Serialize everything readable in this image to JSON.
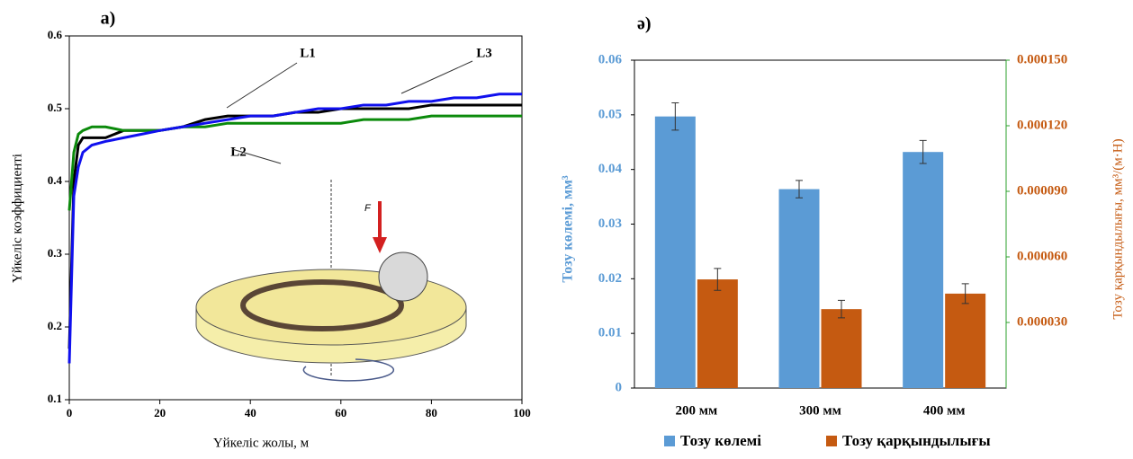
{
  "chart_data": [
    {
      "type": "line",
      "x_label": "Үйкеліс жолы, м",
      "y_label": "Үйкеліс коэффициенті",
      "annotations": [
        "a)",
        "L1",
        "L2",
        "L3",
        "F"
      ],
      "x": [
        0,
        1,
        2,
        3,
        5,
        8,
        12,
        16,
        20,
        25,
        30,
        35,
        40,
        45,
        50,
        55,
        60,
        65,
        70,
        75,
        80,
        85,
        90,
        95,
        100
      ],
      "series": [
        {
          "name": "L1",
          "color": "#000000",
          "values": [
            0.17,
            0.4,
            0.45,
            0.46,
            0.46,
            0.46,
            0.47,
            0.47,
            0.47,
            0.475,
            0.485,
            0.49,
            0.49,
            0.49,
            0.495,
            0.495,
            0.5,
            0.5,
            0.5,
            0.5,
            0.505,
            0.505,
            0.505,
            0.505,
            0.505
          ]
        },
        {
          "name": "L2",
          "color": "#0b8a0b",
          "values": [
            0.36,
            0.44,
            0.465,
            0.47,
            0.475,
            0.475,
            0.47,
            0.47,
            0.47,
            0.475,
            0.475,
            0.48,
            0.48,
            0.48,
            0.48,
            0.48,
            0.48,
            0.485,
            0.485,
            0.485,
            0.49,
            0.49,
            0.49,
            0.49,
            0.49
          ]
        },
        {
          "name": "L3",
          "color": "#1010ee",
          "values": [
            0.15,
            0.38,
            0.42,
            0.44,
            0.45,
            0.455,
            0.46,
            0.465,
            0.47,
            0.475,
            0.48,
            0.485,
            0.49,
            0.49,
            0.495,
            0.5,
            0.5,
            0.505,
            0.505,
            0.51,
            0.51,
            0.515,
            0.515,
            0.52,
            0.52
          ]
        }
      ],
      "xlim": [
        0,
        100
      ],
      "xticks": [
        0,
        20,
        40,
        60,
        80,
        100
      ],
      "ylim": [
        0.1,
        0.6
      ],
      "yticks": [
        0.1,
        0.2,
        0.3,
        0.4,
        0.5,
        0.6
      ]
    },
    {
      "type": "bar",
      "y_label": "Тозу көлемі, мм³",
      "y2_label": "Тозу қарқындылығы, мм³/(м·Н)",
      "annotations": [
        "ə)"
      ],
      "categories": [
        "200 мм",
        "300 мм",
        "400 мм"
      ],
      "series": [
        {
          "name": "Тозу көлемі",
          "color": "#5b9bd5",
          "values": [
            0.0497,
            0.0364,
            0.0432
          ],
          "errors": [
            0.0025,
            0.0016,
            0.0021
          ]
        },
        {
          "name": "Тозу қарқындылығы",
          "color": "#c55a11",
          "axis": "y2",
          "values": [
            4.97e-05,
            3.61e-05,
            4.32e-05
          ],
          "errors": [
            5e-06,
            4e-06,
            4.5e-06
          ]
        }
      ],
      "ylim": [
        0,
        0.06
      ],
      "yticks": [
        0,
        0.01,
        0.02,
        0.03,
        0.04,
        0.05,
        0.06
      ],
      "y2lim": [
        0,
        0.00015
      ],
      "y2ticks": [
        {
          "value": 3e-05,
          "label": "0.000030"
        },
        {
          "value": 6e-05,
          "label": "0.000060"
        },
        {
          "value": 9e-05,
          "label": "0.000090"
        },
        {
          "value": 0.00012,
          "label": "0.000120"
        },
        {
          "value": 0.00015,
          "label": "0.000150"
        }
      ],
      "legend": "bottom"
    }
  ]
}
